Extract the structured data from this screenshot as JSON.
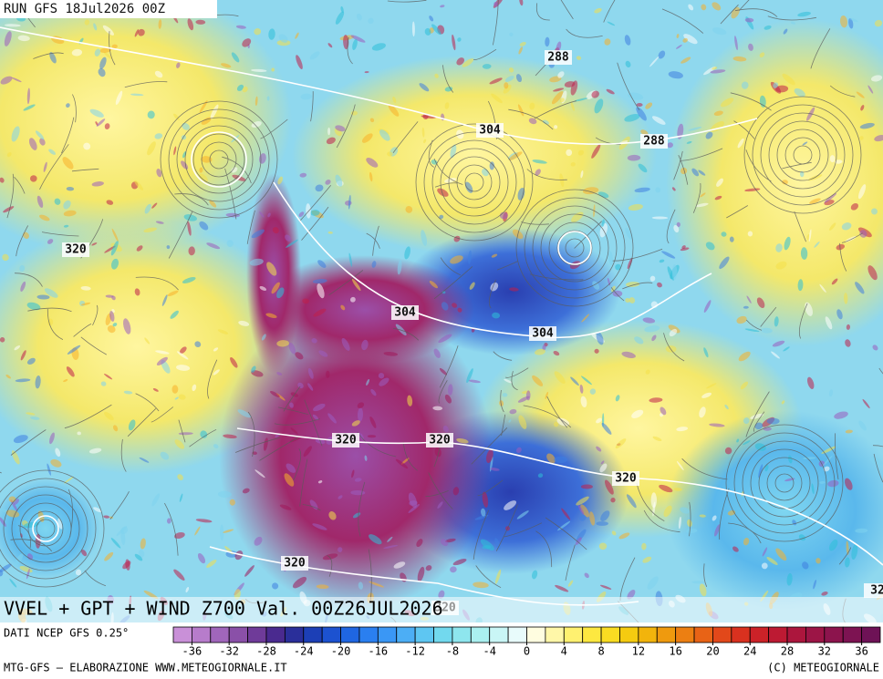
{
  "header": {
    "run": "RUN GFS 18Jul2026 00Z"
  },
  "map": {
    "contour_labels": [
      288,
      304,
      288,
      320,
      304,
      304,
      320,
      320,
      320,
      320,
      320,
      32
    ]
  },
  "footer": {
    "title": "VVEL + GPT + WIND Z700 Val. 00Z26JUL2026",
    "source": "DATI NCEP GFS 0.25°",
    "credit": "MTG-GFS — ELABORAZIONE WWW.METEOGIORNALE.IT",
    "copyright": "(C) METEOGIORNALE"
  },
  "colorbar": {
    "lim": [
      -38,
      38
    ],
    "ticks": [
      -36,
      -32,
      -28,
      -24,
      -20,
      -16,
      -12,
      -8,
      -4,
      0,
      4,
      8,
      12,
      16,
      20,
      24,
      28,
      32,
      36
    ],
    "colors": [
      "#c990d8",
      "#b77ccb",
      "#a066bb",
      "#8a50a8",
      "#6f3b99",
      "#4a2a8f",
      "#2a2f9a",
      "#1c3fb6",
      "#1c52d0",
      "#1f66e2",
      "#2a7ff0",
      "#3a97f5",
      "#4caef5",
      "#5ec6f2",
      "#72d9ee",
      "#8ee6ee",
      "#aaf0f0",
      "#c9f6f6",
      "#e8fbfb",
      "#fffde0",
      "#fff7a8",
      "#fff170",
      "#fde840",
      "#f9dc22",
      "#f5cb10",
      "#f2b40c",
      "#ef9a0e",
      "#ec7f12",
      "#e86316",
      "#e2481a",
      "#d9311f",
      "#cc2228",
      "#bd1a33",
      "#ac163d",
      "#9c1546",
      "#8c144d",
      "#7d1352",
      "#6e1256"
    ]
  }
}
